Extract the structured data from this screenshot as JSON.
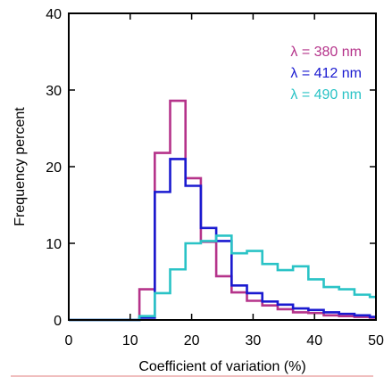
{
  "chart_data": {
    "type": "line",
    "title": "",
    "xlabel": "Coefficient of variation (%)",
    "ylabel": "Frequency percent",
    "xlim": [
      0,
      50
    ],
    "ylim": [
      0,
      40
    ],
    "x_ticks": [
      0,
      10,
      20,
      30,
      40,
      50
    ],
    "y_ticks": [
      0,
      10,
      20,
      30,
      40
    ],
    "x_tick_labels": [
      "0",
      "10",
      "20",
      "30",
      "40",
      "50"
    ],
    "y_tick_labels": [
      "0",
      "10",
      "20",
      "30",
      "40"
    ],
    "grid": false,
    "legend_position": "top-right",
    "step_edges": [
      0,
      3,
      6,
      9,
      11.5,
      14,
      16.5,
      19,
      21.5,
      24,
      26.5,
      29,
      31.5,
      34,
      36.5,
      39,
      41.5,
      44,
      46.5,
      49,
      50
    ],
    "series": [
      {
        "name": "λ = 380 nm",
        "color": "#b5338a",
        "values": [
          0,
          0,
          0,
          0,
          4.0,
          21.8,
          28.6,
          18.5,
          10.2,
          5.7,
          3.6,
          2.5,
          1.9,
          1.4,
          1.0,
          0.9,
          0.6,
          0.5,
          0.4,
          0.3
        ]
      },
      {
        "name": "λ = 412 nm",
        "color": "#1a1ad0",
        "values": [
          0,
          0,
          0,
          0,
          0.3,
          16.7,
          21.0,
          17.5,
          12.0,
          10.3,
          4.5,
          3.5,
          2.4,
          2.0,
          1.5,
          1.3,
          1.0,
          0.8,
          0.6,
          0.4
        ]
      },
      {
        "name": "λ = 490 nm",
        "color": "#2ac3c6",
        "values": [
          0,
          0,
          0,
          0,
          0.5,
          3.5,
          6.6,
          10.0,
          10.3,
          11.0,
          8.7,
          9.0,
          7.3,
          6.5,
          7.0,
          5.3,
          4.3,
          4.0,
          3.3,
          3.0
        ]
      }
    ]
  }
}
